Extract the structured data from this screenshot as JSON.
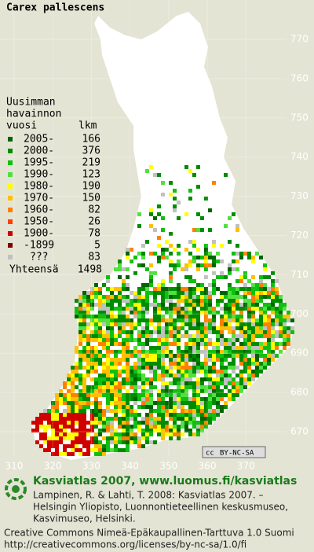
{
  "title": "Carex pallescens",
  "legend": {
    "heading": [
      "Uusimman",
      "havainnon"
    ],
    "col_period": "vuosi",
    "col_count": "lkm",
    "entries": [
      {
        "label": "2005-",
        "count": 166,
        "color": "#006400"
      },
      {
        "label": "2000-",
        "count": 376,
        "color": "#008c00"
      },
      {
        "label": "1995-",
        "count": 219,
        "color": "#10c010"
      },
      {
        "label": "1990-",
        "count": 123,
        "color": "#50e040"
      },
      {
        "label": "1980-",
        "count": 190,
        "color": "#ffff00"
      },
      {
        "label": "1970-",
        "count": 150,
        "color": "#ffc000"
      },
      {
        "label": "1960-",
        "count": 82,
        "color": "#ff8000"
      },
      {
        "label": "1950-",
        "count": 26,
        "color": "#ff4000"
      },
      {
        "label": "1900-",
        "count": 78,
        "color": "#d00000"
      },
      {
        "label": "-1899",
        "count": 5,
        "color": "#800000"
      },
      {
        "label": "???",
        "count": 83,
        "color": "#c0c0c0"
      }
    ],
    "total_label": "Yhteensä",
    "total": 1498
  },
  "map": {
    "y_ticks": [
      770,
      760,
      750,
      740,
      730,
      720,
      710,
      700,
      690,
      680,
      670
    ],
    "x_ticks": [
      310,
      320,
      330,
      340,
      350,
      360,
      370
    ],
    "license_badge": [
      "cc",
      "BY-NC-SA"
    ]
  },
  "footer": {
    "site": "Kasviatlas 2007, www.luomus.fi/kasviatlas",
    "citation": [
      "Lampinen, R. & Lahti, T. 2008: Kasviatlas 2007. –",
      "Helsingin Yliopisto, Luonnontieteellinen keskusmuseo,",
      "Kasvimuseo, Helsinki."
    ],
    "license": [
      "Creative Commons Nimeä-Epäkaupallinen-Tarttuva 1.0 Suomi",
      "http://creativecommons.org/licenses/by-nc-sa/1.0/fi"
    ]
  }
}
